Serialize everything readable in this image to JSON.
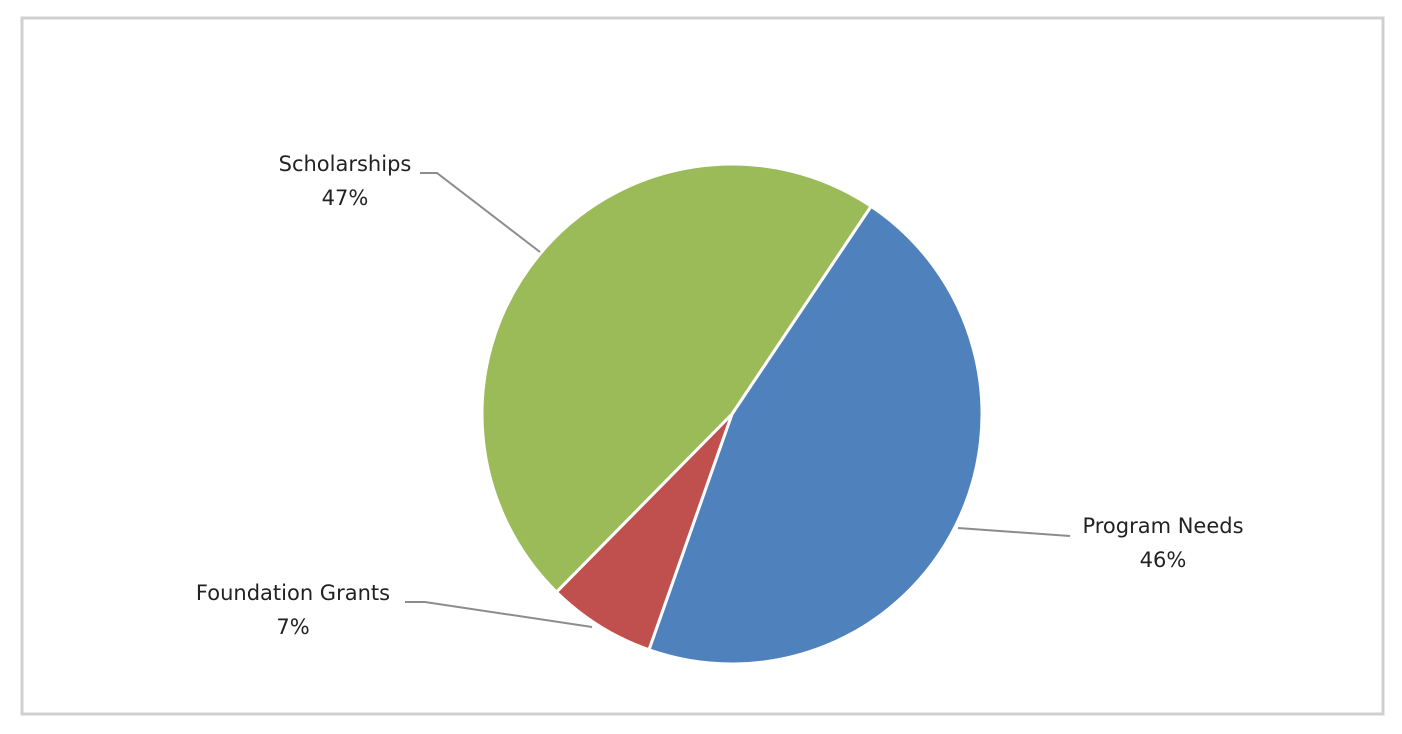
{
  "chart_data": {
    "type": "pie",
    "categories": [
      "Program Needs",
      "Foundation Grants",
      "Scholarships"
    ],
    "values": [
      46,
      7,
      47
    ],
    "value_labels": [
      "46%",
      "7%",
      "47%"
    ],
    "colors": [
      "#4f81bd",
      "#c0504d",
      "#9bbb59"
    ]
  }
}
